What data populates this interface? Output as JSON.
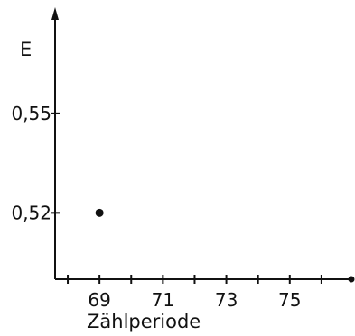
{
  "chart_data": {
    "type": "scatter",
    "title": "",
    "xlabel": "Zählperiode",
    "ylabel": "E",
    "x_ticks": [
      {
        "value": 69,
        "label": "69"
      },
      {
        "value": 71,
        "label": "71"
      },
      {
        "value": 73,
        "label": "73"
      },
      {
        "value": 75,
        "label": "75"
      }
    ],
    "x_minor_ticks": [
      68,
      70,
      72,
      74,
      76
    ],
    "y_ticks": [
      {
        "value": 0.52,
        "label": "0,52"
      },
      {
        "value": 0.55,
        "label": "0,55"
      }
    ],
    "xlim": [
      67.6,
      77
    ],
    "ylim": [
      0.5,
      0.582
    ],
    "grid": false,
    "legend": "none",
    "series": [
      {
        "points": [
          {
            "x": 69,
            "y": 0.52
          }
        ]
      }
    ],
    "colors": {
      "ink": "#111111",
      "background": "#ffffff"
    }
  }
}
